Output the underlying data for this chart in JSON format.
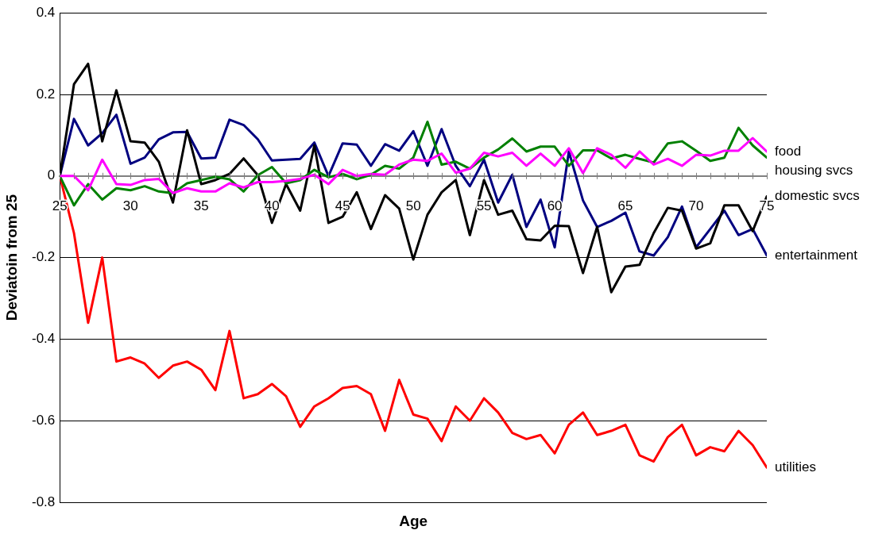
{
  "chart_data": {
    "type": "line",
    "xlabel": "Age",
    "ylabel": "Deviatoin from 25",
    "x": [
      25,
      26,
      27,
      28,
      29,
      30,
      31,
      32,
      33,
      34,
      35,
      36,
      37,
      38,
      39,
      40,
      41,
      42,
      43,
      44,
      45,
      46,
      47,
      48,
      49,
      50,
      51,
      52,
      53,
      54,
      55,
      56,
      57,
      58,
      59,
      60,
      61,
      62,
      63,
      64,
      65,
      66,
      67,
      68,
      69,
      70,
      71,
      72,
      73,
      74,
      75
    ],
    "series": [
      {
        "name": "food",
        "color": "#ff00ff",
        "values": [
          0,
          0,
          -0.035,
          0.04,
          -0.02,
          -0.022,
          -0.01,
          -0.007,
          -0.042,
          -0.03,
          -0.038,
          -0.038,
          -0.018,
          -0.028,
          -0.015,
          -0.015,
          -0.012,
          -0.007,
          0.003,
          -0.02,
          0.015,
          0,
          0.005,
          0.003,
          0.028,
          0.04,
          0.037,
          0.055,
          0.008,
          0.018,
          0.057,
          0.048,
          0.057,
          0.025,
          0.055,
          0.025,
          0.068,
          0.007,
          0.068,
          0.052,
          0.02,
          0.06,
          0.028,
          0.042,
          0.025,
          0.052,
          0.05,
          0.062,
          0.062,
          0.093,
          0.06
        ]
      },
      {
        "name": "housing svcs",
        "color": "#008000",
        "values": [
          0,
          -0.072,
          -0.02,
          -0.058,
          -0.03,
          -0.035,
          -0.025,
          -0.038,
          -0.042,
          -0.018,
          -0.01,
          -0.002,
          -0.008,
          -0.038,
          0.002,
          0.022,
          -0.018,
          -0.01,
          0.015,
          -0.003,
          0.005,
          -0.008,
          0.003,
          0.025,
          0.018,
          0.045,
          0.133,
          0.028,
          0.035,
          0.018,
          0.045,
          0.065,
          0.092,
          0.06,
          0.072,
          0.072,
          0.025,
          0.063,
          0.063,
          0.043,
          0.052,
          0.042,
          0.033,
          0.08,
          0.085,
          0.062,
          0.037,
          0.045,
          0.118,
          0.075,
          0.045
        ]
      },
      {
        "name": "domestic svcs",
        "color": "#000000",
        "values": [
          0,
          0.225,
          0.275,
          0.085,
          0.21,
          0.085,
          0.082,
          0.035,
          -0.065,
          0.112,
          -0.02,
          -0.01,
          0.005,
          0.043,
          0.002,
          -0.115,
          -0.02,
          -0.085,
          0.075,
          -0.115,
          -0.1,
          -0.04,
          -0.13,
          -0.047,
          -0.08,
          -0.205,
          -0.095,
          -0.04,
          -0.01,
          -0.145,
          -0.01,
          -0.095,
          -0.085,
          -0.155,
          -0.158,
          -0.122,
          -0.123,
          -0.238,
          -0.125,
          -0.285,
          -0.222,
          -0.218,
          -0.14,
          -0.078,
          -0.085,
          -0.178,
          -0.165,
          -0.072,
          -0.072,
          -0.135,
          -0.05
        ]
      },
      {
        "name": "entertainment",
        "color": "#000080",
        "values": [
          0,
          0.14,
          0.075,
          0.105,
          0.15,
          0.03,
          0.045,
          0.09,
          0.107,
          0.108,
          0.043,
          0.045,
          0.138,
          0.125,
          0.09,
          0.038,
          0.04,
          0.042,
          0.082,
          0,
          0.08,
          0.077,
          0.025,
          0.078,
          0.062,
          0.11,
          0.025,
          0.115,
          0.025,
          -0.025,
          0.04,
          -0.065,
          0.003,
          -0.125,
          -0.058,
          -0.175,
          0.06,
          -0.06,
          -0.125,
          -0.11,
          -0.09,
          -0.185,
          -0.195,
          -0.15,
          -0.075,
          -0.175,
          -0.13,
          -0.085,
          -0.145,
          -0.13,
          -0.195
        ]
      },
      {
        "name": "utilities",
        "color": "#ff0000",
        "values": [
          0,
          -0.14,
          -0.36,
          -0.2,
          -0.455,
          -0.445,
          -0.46,
          -0.495,
          -0.465,
          -0.455,
          -0.475,
          -0.525,
          -0.38,
          -0.545,
          -0.535,
          -0.51,
          -0.54,
          -0.615,
          -0.565,
          -0.545,
          -0.52,
          -0.515,
          -0.535,
          -0.625,
          -0.5,
          -0.585,
          -0.595,
          -0.65,
          -0.565,
          -0.6,
          -0.545,
          -0.58,
          -0.63,
          -0.645,
          -0.635,
          -0.68,
          -0.61,
          -0.58,
          -0.635,
          -0.625,
          -0.61,
          -0.685,
          -0.7,
          -0.64,
          -0.61,
          -0.685,
          -0.665,
          -0.675,
          -0.625,
          -0.66,
          -0.715
        ]
      }
    ],
    "xlim": [
      25,
      75
    ],
    "xticks": [
      25,
      {
        "value": 26,
        "label": null
      },
      {
        "value": 27,
        "label": null
      },
      {
        "value": 28,
        "label": null
      },
      {
        "value": 29,
        "label": null
      },
      30,
      {
        "value": 31,
        "label": null
      },
      {
        "value": 32,
        "label": null
      },
      {
        "value": 33,
        "label": null
      },
      {
        "value": 34,
        "label": null
      },
      35,
      {
        "value": 36,
        "label": null
      },
      {
        "value": 37,
        "label": null
      },
      {
        "value": 38,
        "label": null
      },
      {
        "value": 39,
        "label": null
      },
      40,
      {
        "value": 41,
        "label": null
      },
      {
        "value": 42,
        "label": null
      },
      {
        "value": 43,
        "label": null
      },
      {
        "value": 44,
        "label": null
      },
      45,
      {
        "value": 46,
        "label": null
      },
      {
        "value": 47,
        "label": null
      },
      {
        "value": 48,
        "label": null
      },
      {
        "value": 49,
        "label": null
      },
      50,
      {
        "value": 51,
        "label": null
      },
      {
        "value": 52,
        "label": null
      },
      {
        "value": 53,
        "label": null
      },
      {
        "value": 54,
        "label": null
      },
      55,
      {
        "value": 56,
        "label": null
      },
      {
        "value": 57,
        "label": null
      },
      {
        "value": 58,
        "label": null
      },
      {
        "value": 59,
        "label": null
      },
      60,
      {
        "value": 61,
        "label": null
      },
      {
        "value": 62,
        "label": null
      },
      {
        "value": 63,
        "label": null
      },
      {
        "value": 64,
        "label": null
      },
      65,
      {
        "value": 66,
        "label": null
      },
      {
        "value": 67,
        "label": null
      },
      {
        "value": 68,
        "label": null
      },
      {
        "value": 69,
        "label": null
      },
      70,
      {
        "value": 71,
        "label": null
      },
      {
        "value": 72,
        "label": null
      },
      {
        "value": 73,
        "label": null
      },
      {
        "value": 74,
        "label": null
      },
      75
    ],
    "ylim": [
      -0.8,
      0.4
    ],
    "yticks": [
      {
        "value": -0.8,
        "label": "-0.8"
      },
      {
        "value": -0.6,
        "label": "-0.6"
      },
      {
        "value": -0.4,
        "label": "-0.4"
      },
      {
        "value": -0.2,
        "label": "-0.2"
      },
      0,
      {
        "value": 0.2,
        "label": "0.2"
      },
      {
        "value": 0.4,
        "label": "0.4"
      }
    ],
    "grid": "y",
    "legend": false,
    "marker": "none",
    "line_style": "solid"
  }
}
